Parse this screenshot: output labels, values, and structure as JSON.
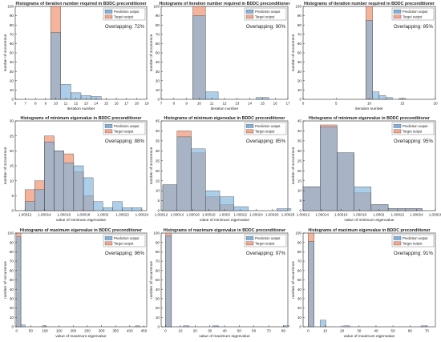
{
  "figure": {
    "colors": {
      "prediction": "#7fb3dd",
      "target": "#f3a68a",
      "overlap": "#8f6b66",
      "axis": "#262626"
    }
  },
  "chart_data": [
    {
      "type": "histogram",
      "title": "Histograms of iteration number required in BDDC preconditioner",
      "xlabel": "iteration number",
      "ylabel": "number of occurrence",
      "annotation": "Overlapping: 72%",
      "legend": [
        "Prediction output",
        "Target output"
      ],
      "legend_position": "top-right",
      "xlim": [
        6,
        19
      ],
      "ylim": [
        0,
        100
      ],
      "xticks": [
        6,
        7,
        8,
        9,
        10,
        11,
        12,
        13,
        14,
        15,
        16,
        17,
        18,
        19
      ],
      "yticks": [
        0,
        10,
        20,
        30,
        40,
        50,
        60,
        70,
        80,
        90,
        100
      ],
      "xtick_labels": [
        "6",
        "7",
        "8",
        "9",
        "10",
        "11",
        "12",
        "13",
        "14",
        "15",
        "16",
        "17",
        "18",
        "19"
      ],
      "bin_edges": [
        9.5,
        10.5,
        11.5,
        12.5,
        13.5,
        14.5
      ],
      "prediction": [
        72,
        16,
        7,
        4,
        3
      ],
      "target": [
        100,
        0,
        0,
        0,
        0
      ]
    },
    {
      "type": "histogram",
      "title": "Histograms of iteration number required in BDDC preconditioner",
      "xlabel": "iteration number",
      "ylabel": "number of occurrence",
      "annotation": "Overlapping: 90%",
      "legend": [
        "Prediction output",
        "Target output"
      ],
      "legend_position": "top-right",
      "xlim": [
        7,
        17
      ],
      "ylim": [
        0,
        100
      ],
      "xticks": [
        7,
        8,
        9,
        10,
        11,
        12,
        13,
        14,
        15,
        16,
        17
      ],
      "yticks": [
        0,
        10,
        20,
        30,
        40,
        50,
        60,
        70,
        80,
        90,
        100
      ],
      "xtick_labels": [
        "7",
        "8",
        "9",
        "10",
        "11",
        "12",
        "13",
        "14",
        "15",
        "16",
        "17"
      ],
      "bin_edges": [
        9.5,
        10.5,
        11.5,
        12.5,
        13.5,
        14.5,
        15.5
      ],
      "prediction": [
        90,
        8,
        0,
        0,
        0,
        2
      ],
      "target": [
        100,
        0,
        0,
        0,
        0,
        0
      ]
    },
    {
      "type": "histogram",
      "title": "Histograms of iteration number required in BDDC preconditioner",
      "xlabel": "iteration number",
      "ylabel": "number of occurrence",
      "annotation": "Overlapping: 85%",
      "legend": [
        "Prediction output",
        "Target output"
      ],
      "legend_position": "top-right",
      "xlim": [
        0,
        20
      ],
      "ylim": [
        0,
        100
      ],
      "xticks": [
        0,
        5,
        10,
        15,
        20
      ],
      "yticks": [
        0,
        10,
        20,
        30,
        40,
        50,
        60,
        70,
        80,
        90,
        100
      ],
      "xtick_labels": [
        "0",
        "5",
        "10",
        "15",
        "20"
      ],
      "bin_edges": [
        9.5,
        10.5,
        11.5,
        12.5,
        13.5,
        14.5,
        15.5
      ],
      "prediction": [
        85,
        8,
        4,
        2,
        0,
        1
      ],
      "target": [
        100,
        0,
        0,
        0,
        0,
        0
      ]
    },
    {
      "type": "histogram",
      "title": "Histograms of minimum eigenvalue in BDDC preconditioner",
      "xlabel": "value of minimum eigenvalue",
      "ylabel": "number of occurrence",
      "annotation": "Overlapping: 88%",
      "legend": [
        "Prediction output",
        "Target output"
      ],
      "legend_position": "top-right",
      "xlim": [
        1.00011,
        1.000245
      ],
      "ylim": [
        0,
        30
      ],
      "xticks": [
        1.00012,
        1.00014,
        1.00016,
        1.00018,
        1.0002,
        1.00022,
        1.00024
      ],
      "yticks": [
        0,
        5,
        10,
        15,
        20,
        25,
        30
      ],
      "xtick_labels": [
        "1.00012",
        "1.00014",
        "1.00016",
        "1.00018",
        "1.0002",
        "1.00022",
        "1.00024"
      ],
      "bin_edges": [
        1.00012,
        1.00013,
        1.00014,
        1.00015,
        1.00016,
        1.00017,
        1.00018,
        1.00019,
        1.0002,
        1.00021,
        1.00022,
        1.00023,
        1.00024
      ],
      "prediction": [
        3,
        7,
        23,
        20,
        16,
        15,
        11,
        3,
        1,
        3,
        1,
        1
      ],
      "target": [
        7,
        10,
        25,
        20,
        19,
        13,
        5,
        0,
        0,
        0,
        0,
        0
      ]
    },
    {
      "type": "histogram",
      "title": "Histograms of minimum eigenvalue in BDDC preconditioner",
      "xlabel": "value of minimum eigenvalue",
      "ylabel": "number of occurrence",
      "annotation": "Overlapping: 85%",
      "legend": [
        "Prediction output",
        "Target output"
      ],
      "legend_position": "top-right",
      "xlim": [
        1.00012,
        1.00028
      ],
      "ylim": [
        0,
        45
      ],
      "xticks": [
        1.00012,
        1.00014,
        1.00016,
        1.00018,
        1.0002,
        1.00022,
        1.00024,
        1.00026,
        1.00028
      ],
      "yticks": [
        0,
        5,
        10,
        15,
        20,
        25,
        30,
        35,
        40,
        45
      ],
      "xtick_labels": [
        "1.00012",
        "1.00014",
        "1.00016",
        "1.00018",
        "1.0002",
        "1.00022",
        "1.00024",
        "1.00026",
        "1.00028"
      ],
      "bin_edges": [
        1.000122,
        1.00014,
        1.000158,
        1.000176,
        1.000194,
        1.000212,
        1.00023,
        1.000248,
        1.000266,
        1.000284
      ],
      "prediction": [
        13,
        37,
        31,
        10,
        7,
        2,
        0,
        0,
        1
      ],
      "target": [
        13,
        40,
        29,
        7,
        3,
        0,
        0,
        0,
        0
      ]
    },
    {
      "type": "histogram",
      "title": "Histograms of minimum eigenvalue in BDDC preconditioner",
      "xlabel": "value of minimum eigenvalue",
      "ylabel": "number of occurrence",
      "annotation": "Overlapping: 95%",
      "legend": [
        "Prediction output",
        "Target output"
      ],
      "legend_position": "top-right",
      "xlim": [
        1.00012,
        1.00026
      ],
      "ylim": [
        0,
        45
      ],
      "xticks": [
        1.00012,
        1.00014,
        1.00016,
        1.00018,
        1.0002,
        1.00022,
        1.00024,
        1.00026
      ],
      "yticks": [
        0,
        5,
        10,
        15,
        20,
        25,
        30,
        35,
        40,
        45
      ],
      "xtick_labels": [
        "1.00012",
        "1.00014",
        "1.00016",
        "1.00018",
        "1.0002",
        "1.00022",
        "1.00024",
        "1.00026"
      ],
      "bin_edges": [
        1.00012,
        1.000138,
        1.000156,
        1.000174,
        1.000192,
        1.00021,
        1.000228,
        1.000246
      ],
      "prediction": [
        12,
        42,
        29,
        12,
        3,
        1,
        1
      ],
      "target": [
        12,
        43,
        29,
        9,
        3,
        1,
        1
      ]
    },
    {
      "type": "histogram",
      "title": "Histograms of maximum eigenvalue in BDDC preconditioner",
      "xlabel": "value of maximum eigenvalue",
      "ylabel": "number of occurrence",
      "annotation": "Overlapping: 96%",
      "legend": [
        "Prediction output",
        "Target output"
      ],
      "legend_position": "top-right",
      "xlim": [
        -5,
        460
      ],
      "ylim": [
        0,
        100
      ],
      "xticks": [
        0,
        50,
        100,
        150,
        200,
        250,
        300,
        350,
        400,
        450
      ],
      "yticks": [
        0,
        10,
        20,
        30,
        40,
        50,
        60,
        70,
        80,
        90,
        100
      ],
      "xtick_labels": [
        "0",
        "50",
        "100",
        "150",
        "200",
        "250",
        "300",
        "350",
        "400",
        "450"
      ],
      "bin_edges": [
        0,
        15,
        30,
        45,
        60,
        75,
        90,
        105,
        120,
        135,
        150,
        165,
        180,
        195,
        210,
        225,
        240,
        255,
        270,
        285,
        300,
        315,
        330,
        345,
        360,
        375,
        390,
        405,
        420,
        435,
        450
      ],
      "prediction": [
        96,
        2,
        0,
        0,
        0,
        0,
        1,
        0,
        0,
        0,
        0,
        0,
        0,
        0,
        0,
        0,
        0,
        0,
        0,
        0,
        0,
        0,
        0,
        0,
        0,
        0,
        0,
        0,
        1,
        0
      ],
      "target": [
        100,
        0,
        0,
        0,
        0,
        0,
        0,
        0,
        0,
        0,
        0,
        0,
        0,
        0,
        0,
        0,
        0,
        0,
        0,
        0,
        0,
        0,
        0,
        0,
        0,
        0,
        0,
        0,
        0,
        0
      ]
    },
    {
      "type": "histogram",
      "title": "Histograms of maximum eigenvalue in BDDC preconditioner",
      "xlabel": "value of maximum eigenvalue",
      "ylabel": "number of occurrence",
      "annotation": "Overlapping: 97%",
      "legend": [
        "Prediction output",
        "Target output"
      ],
      "legend_position": "top-right",
      "xlim": [
        -3,
        83
      ],
      "ylim": [
        0,
        100
      ],
      "xticks": [
        0,
        10,
        20,
        30,
        40,
        50,
        60,
        70,
        80
      ],
      "yticks": [
        0,
        10,
        20,
        30,
        40,
        50,
        60,
        70,
        80,
        90,
        100
      ],
      "xtick_labels": [
        "0",
        "10",
        "20",
        "30",
        "40",
        "50",
        "60",
        "70",
        "80"
      ],
      "bin_edges": [
        0,
        4,
        8,
        12,
        16,
        20,
        24,
        28,
        32,
        36,
        40,
        44,
        48,
        52,
        56,
        60,
        64,
        68,
        72,
        76,
        80,
        84
      ],
      "prediction": [
        97,
        0,
        0,
        1,
        0,
        0,
        0,
        0,
        1,
        0,
        0,
        0,
        0,
        0,
        0,
        0,
        0,
        0,
        0,
        0,
        1
      ],
      "target": [
        100,
        0,
        0,
        0,
        0,
        0,
        0,
        0,
        0,
        0,
        0,
        0,
        0,
        0,
        0,
        0,
        0,
        0,
        0,
        0,
        0
      ]
    },
    {
      "type": "histogram",
      "title": "Histograms of maximum eigenvalue in BDDC preconditioner",
      "xlabel": "value of maximum eigenvalue",
      "ylabel": "number of occurrence",
      "annotation": "Overlapping: 91%",
      "legend": [
        "Prediction output",
        "Target output"
      ],
      "legend_position": "top-right",
      "xlim": [
        -3,
        75
      ],
      "ylim": [
        0,
        100
      ],
      "xticks": [
        0,
        10,
        20,
        30,
        40,
        50,
        60,
        70
      ],
      "yticks": [
        0,
        10,
        20,
        30,
        40,
        50,
        60,
        70,
        80,
        90,
        100
      ],
      "xtick_labels": [
        "0",
        "10",
        "20",
        "30",
        "40",
        "50",
        "60",
        "70"
      ],
      "bin_edges": [
        0,
        3.5,
        7,
        10.5,
        14,
        17.5,
        21,
        24.5,
        28,
        31.5,
        35,
        38.5,
        42,
        45.5,
        49,
        52.5,
        56,
        59.5,
        63,
        66.5,
        70,
        73.5
      ],
      "prediction": [
        91,
        0,
        7,
        0,
        0,
        0,
        1,
        0,
        0,
        0,
        0,
        0,
        0,
        0,
        0,
        0,
        0,
        0,
        0,
        1,
        0
      ],
      "target": [
        100,
        0,
        0,
        0,
        0,
        0,
        0,
        0,
        0,
        0,
        0,
        0,
        0,
        0,
        0,
        0,
        0,
        0,
        0,
        0,
        0
      ]
    }
  ]
}
